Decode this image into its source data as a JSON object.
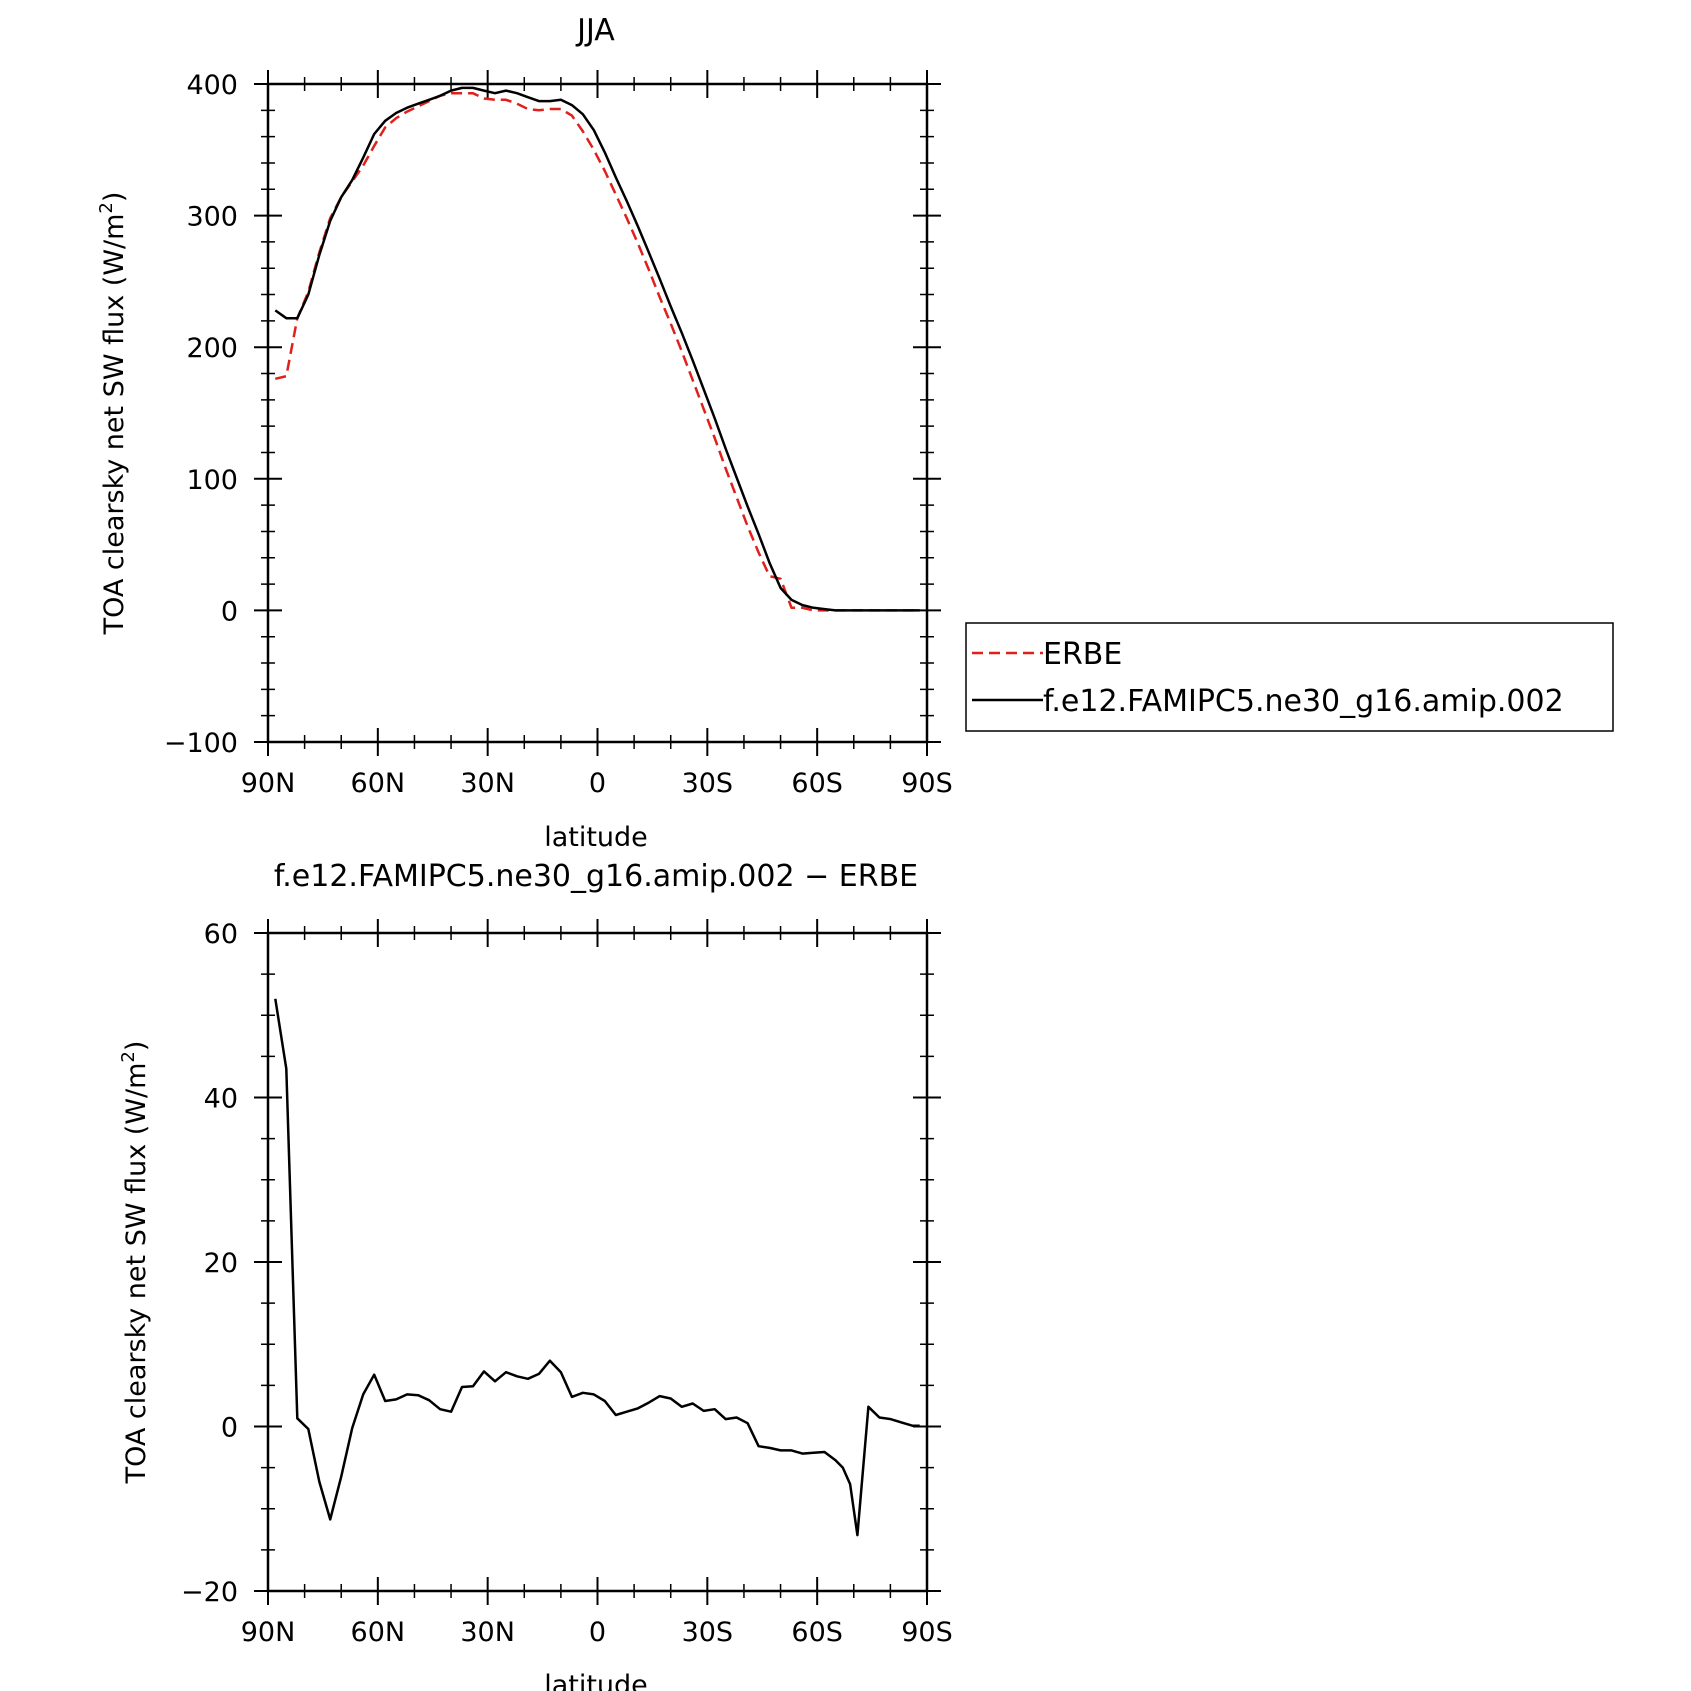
{
  "chart_data": [
    {
      "type": "line",
      "title": "JJA",
      "xlabel": "latitude",
      "ylabel": "TOA clearsky net SW flux (W/m",
      "ylabel_sup": "2",
      "ylabel_close": ")",
      "xlim": [
        90,
        -90
      ],
      "ylim": [
        -100,
        400
      ],
      "x_ticks": [
        {
          "value": 90,
          "label": "90N"
        },
        {
          "value": 60,
          "label": "60N"
        },
        {
          "value": 30,
          "label": "30N"
        },
        {
          "value": 0,
          "label": "0"
        },
        {
          "value": -30,
          "label": "30S"
        },
        {
          "value": -60,
          "label": "60S"
        },
        {
          "value": -90,
          "label": "90S"
        }
      ],
      "y_ticks": [
        {
          "value": 400,
          "label": "400"
        },
        {
          "value": 300,
          "label": "300"
        },
        {
          "value": 200,
          "label": "200"
        },
        {
          "value": 100,
          "label": "100"
        },
        {
          "value": 0,
          "label": "0"
        },
        {
          "value": -100,
          "label": "−100"
        }
      ],
      "grid": false,
      "legend_position": "right",
      "series": [
        {
          "name": "ERBE",
          "color": "#e0201b",
          "dash": "dashed",
          "x": [
            88,
            85,
            82,
            79,
            76,
            73,
            70,
            67,
            64,
            61,
            58,
            55,
            52,
            49,
            46,
            43,
            40,
            37,
            34,
            31,
            28,
            25,
            22,
            19,
            16,
            13,
            10,
            7,
            4,
            1,
            -2,
            -5,
            -8,
            -11,
            -14,
            -17,
            -20,
            -23,
            -26,
            -29,
            -32,
            -35,
            -38,
            -41,
            -44,
            -47,
            -50,
            -53,
            -56,
            -59,
            -62,
            -65,
            -68,
            -71,
            -74,
            -77,
            -80,
            -83,
            -86,
            -88
          ],
          "y": [
            176,
            178,
            222,
            242,
            272,
            298,
            314,
            326,
            338,
            353,
            367,
            374,
            379,
            383,
            387,
            391,
            393,
            393,
            393,
            389,
            388,
            388,
            385,
            381,
            380,
            381,
            381,
            376,
            364,
            350,
            334,
            316,
            298,
            279,
            259,
            238,
            218,
            197,
            175,
            153,
            131,
            108,
            86,
            64,
            44,
            26,
            24,
            2,
            2,
            0,
            0,
            0,
            0,
            0,
            0,
            0,
            0,
            0,
            0,
            0
          ]
        },
        {
          "name": "f.e12.FAMIPC5.ne30_g16.amip.002",
          "color": "#000000",
          "dash": "solid",
          "x": [
            88,
            85,
            82,
            79,
            76,
            73,
            70,
            67,
            64,
            61,
            58,
            55,
            52,
            49,
            46,
            43,
            40,
            37,
            34,
            31,
            28,
            25,
            22,
            19,
            16,
            13,
            10,
            7,
            4,
            1,
            -2,
            -5,
            -8,
            -11,
            -14,
            -17,
            -20,
            -23,
            -26,
            -29,
            -32,
            -35,
            -38,
            -41,
            -44,
            -47,
            -50,
            -53,
            -56,
            -59,
            -62,
            -65,
            -68,
            -71,
            -74,
            -77,
            -80,
            -83,
            -86,
            -88
          ],
          "y": [
            228,
            222,
            222,
            240,
            270,
            296,
            314,
            327,
            344,
            362,
            372,
            378,
            382,
            385,
            388,
            391,
            395,
            397,
            397,
            395,
            393,
            395,
            393,
            390,
            387,
            387,
            388,
            384,
            377,
            365,
            348,
            329,
            311,
            292,
            272,
            252,
            231,
            211,
            190,
            168,
            146,
            123,
            101,
            79,
            58,
            36,
            17,
            8,
            4,
            2,
            1,
            0,
            0,
            0,
            0,
            0,
            0,
            0,
            0,
            0
          ]
        }
      ]
    },
    {
      "type": "line",
      "title": "f.e12.FAMIPC5.ne30_g16.amip.002 − ERBE",
      "xlabel": "latitude",
      "ylabel": "TOA clearsky net SW flux (W/m",
      "ylabel_sup": "2",
      "ylabel_close": ")",
      "xlim": [
        90,
        -90
      ],
      "ylim": [
        -20,
        60
      ],
      "x_ticks": [
        {
          "value": 90,
          "label": "90N"
        },
        {
          "value": 60,
          "label": "60N"
        },
        {
          "value": 30,
          "label": "30N"
        },
        {
          "value": 0,
          "label": "0"
        },
        {
          "value": -30,
          "label": "30S"
        },
        {
          "value": -60,
          "label": "60S"
        },
        {
          "value": -90,
          "label": "90S"
        }
      ],
      "y_ticks": [
        {
          "value": 60,
          "label": "60"
        },
        {
          "value": 40,
          "label": "40"
        },
        {
          "value": 20,
          "label": "20"
        },
        {
          "value": 0,
          "label": "0"
        },
        {
          "value": -20,
          "label": "−20"
        }
      ],
      "grid": false,
      "series": [
        {
          "color": "#000000",
          "dash": "solid",
          "x": [
            88,
            85,
            82,
            79,
            76,
            73,
            70,
            67,
            64,
            61,
            58,
            55,
            52,
            49,
            46,
            43,
            40,
            37,
            34,
            31,
            28,
            25,
            22,
            19,
            16,
            13,
            10,
            7,
            4,
            1,
            -2,
            -5,
            -8,
            -11,
            -14,
            -17,
            -20,
            -23,
            -26,
            -29,
            -32,
            -35,
            -38,
            -41,
            -44,
            -47,
            -50,
            -53,
            -56,
            -59,
            -62,
            -65,
            -67,
            -69,
            -71,
            -74,
            -77,
            -80,
            -83,
            -86,
            -88
          ],
          "y": [
            52,
            43.5,
            1,
            -0.3,
            -6.7,
            -11.3,
            -6.1,
            -0.2,
            3.9,
            6.3,
            3.1,
            3.3,
            3.9,
            3.8,
            3.2,
            2.1,
            1.8,
            4.8,
            4.9,
            6.7,
            5.5,
            6.6,
            6.1,
            5.8,
            6.4,
            8.0,
            6.6,
            3.6,
            4.1,
            3.9,
            3.1,
            1.4,
            1.8,
            2.2,
            2.9,
            3.7,
            3.4,
            2.4,
            2.8,
            1.9,
            2.1,
            0.9,
            1.1,
            0.4,
            -2.4,
            -2.6,
            -2.9,
            -2.9,
            -3.3,
            -3.2,
            -3.1,
            -4.1,
            -5.0,
            -7.0,
            -13.2,
            2.4,
            1.1,
            0.9,
            0.5,
            0.1,
            0.1
          ]
        }
      ]
    }
  ]
}
